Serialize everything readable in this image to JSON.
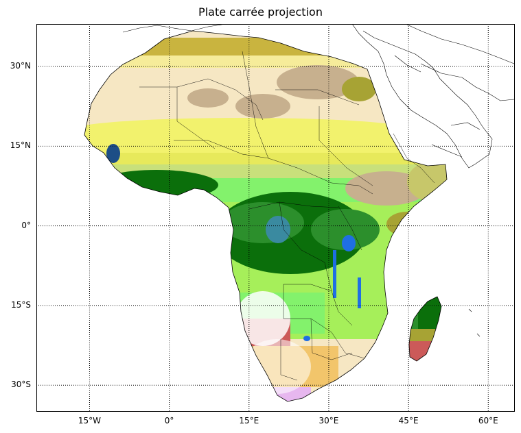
{
  "title": "Plate carrée projection",
  "map": {
    "projection": "Plate carrée",
    "lon_range": [
      -25,
      65
    ],
    "lat_range": [
      -35,
      38
    ],
    "graticule": "dotted",
    "colors": {
      "forest": "#0b6f0b",
      "forest_light": "#2c8f2c",
      "savanna": "#a6ef5a",
      "grass": "#83f26c",
      "shrub": "#c8e07b",
      "desert": "#f6e7c3",
      "sand_yellow": "#f2f26d",
      "bare_tan": "#c7b08e",
      "olive": "#a7a334",
      "dry_orange": "#f2c56b",
      "red_semi": "#cc5a59",
      "water": "#1f6fe3",
      "wetland": "#3a8aa0",
      "coast_lightblue": "#a7c6dd"
    }
  },
  "lat_ticks": [
    {
      "value": 30,
      "label": "30°N"
    },
    {
      "value": 15,
      "label": "15°N"
    },
    {
      "value": 0,
      "label": "0°"
    },
    {
      "value": -15,
      "label": "15°S"
    },
    {
      "value": -30,
      "label": "30°S"
    }
  ],
  "lon_ticks": [
    {
      "value": -15,
      "label": "15°W"
    },
    {
      "value": 0,
      "label": "0°"
    },
    {
      "value": 15,
      "label": "15°E"
    },
    {
      "value": 30,
      "label": "30°E"
    },
    {
      "value": 45,
      "label": "45°E"
    },
    {
      "value": 60,
      "label": "60°E"
    }
  ]
}
